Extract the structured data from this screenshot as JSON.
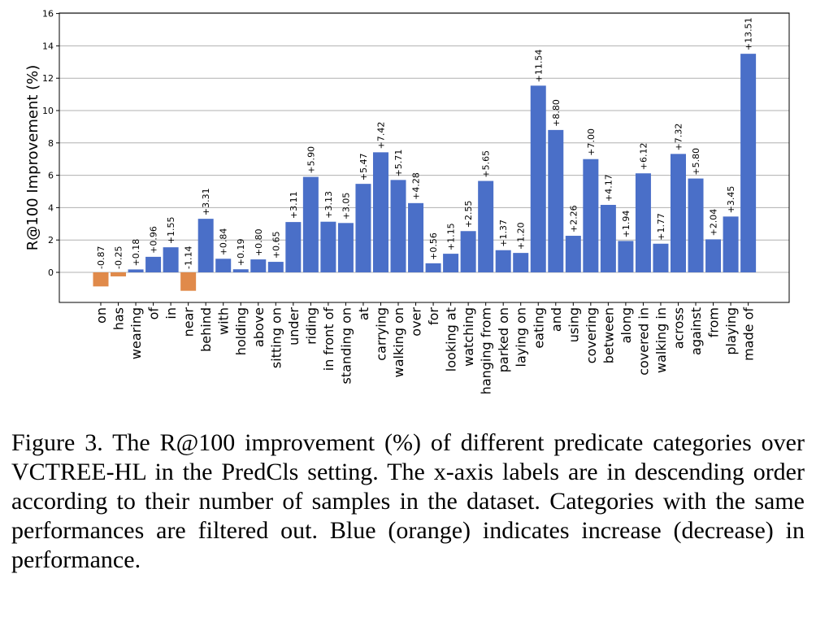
{
  "chart_data": {
    "type": "bar",
    "title": "",
    "xlabel": "",
    "ylabel": "R@100 Improvement (%)",
    "ylim": [
      -1.8,
      16
    ],
    "yticks": [
      0,
      2,
      4,
      6,
      8,
      10,
      12,
      14,
      16
    ],
    "grid": true,
    "positive_color": "#4a6fc8",
    "negative_color": "#e08a4a",
    "categories": [
      "on",
      "has",
      "wearing",
      "of",
      "in",
      "near",
      "behind",
      "with",
      "holding",
      "above",
      "sitting on",
      "under",
      "riding",
      "in front of",
      "standing on",
      "at",
      "carrying",
      "walking on",
      "over",
      "for",
      "looking at",
      "watching",
      "hanging from",
      "parked on",
      "laying on",
      "eating",
      "and",
      "using",
      "covering",
      "between",
      "along",
      "covered in",
      "walking in",
      "across",
      "against",
      "from",
      "playing",
      "made of"
    ],
    "values": [
      -0.87,
      -0.25,
      0.18,
      0.96,
      1.55,
      -1.14,
      3.31,
      0.84,
      0.19,
      0.8,
      0.65,
      3.11,
      5.9,
      3.13,
      3.05,
      5.47,
      7.42,
      5.71,
      4.28,
      0.56,
      1.15,
      2.55,
      5.65,
      1.37,
      1.2,
      11.54,
      8.8,
      2.26,
      7.0,
      4.17,
      1.94,
      6.12,
      1.77,
      7.32,
      5.8,
      2.04,
      3.45,
      13.51
    ],
    "data_labels": [
      "-0.87",
      "-0.25",
      "+0.18",
      "+0.96",
      "+1.55",
      "-1.14",
      "+3.31",
      "+0.84",
      "+0.19",
      "+0.80",
      "+0.65",
      "+3.11",
      "+5.90",
      "+3.13",
      "+3.05",
      "+5.47",
      "+7.42",
      "+5.71",
      "+4.28",
      "+0.56",
      "+1.15",
      "+2.55",
      "+5.65",
      "+1.37",
      "+1.20",
      "+11.54",
      "+8.80",
      "+2.26",
      "+7.00",
      "+4.17",
      "+1.94",
      "+6.12",
      "+1.77",
      "+7.32",
      "+5.80",
      "+2.04",
      "+3.45",
      "+13.51"
    ]
  },
  "caption": "Figure 3. The R@100 improvement (%) of different predicate categories over VCTREE-HL in the PredCls setting. The x-axis labels are in descending order according to their number of samples in the dataset. Categories with the same performances are filtered out. Blue (orange) indicates increase (decrease) in performance."
}
